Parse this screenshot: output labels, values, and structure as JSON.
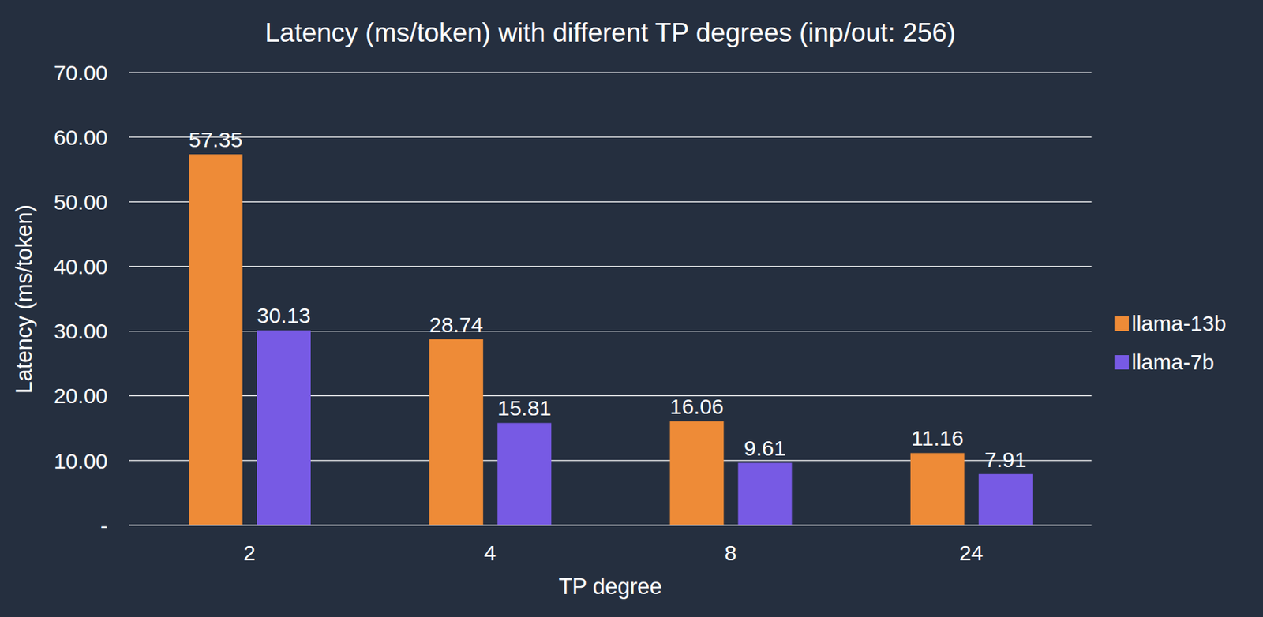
{
  "chart_data": {
    "type": "bar",
    "title": "Latency (ms/token) with different TP degrees (inp/out: 256)",
    "x_label": "TP degree",
    "y_label": "Latency (ms/token)",
    "categories": [
      "2",
      "4",
      "8",
      "24"
    ],
    "series": [
      {
        "name": "llama-13b",
        "color": "#ee8b37",
        "values": [
          57.35,
          28.74,
          16.06,
          11.16
        ]
      },
      {
        "name": "llama-7b",
        "color": "#775ae4",
        "values": [
          30.13,
          15.81,
          9.61,
          7.91
        ]
      }
    ],
    "ylim": [
      0,
      70
    ],
    "yticks": [
      {
        "value": 0,
        "label": "-"
      },
      {
        "value": 10,
        "label": "10.00"
      },
      {
        "value": 20,
        "label": "20.00"
      },
      {
        "value": 30,
        "label": "30.00"
      },
      {
        "value": 40,
        "label": "40.00"
      },
      {
        "value": 50,
        "label": "50.00"
      },
      {
        "value": 60,
        "label": "60.00"
      },
      {
        "value": 70,
        "label": "70.00"
      }
    ],
    "grid": true,
    "legend": "right",
    "data_labels": true
  }
}
